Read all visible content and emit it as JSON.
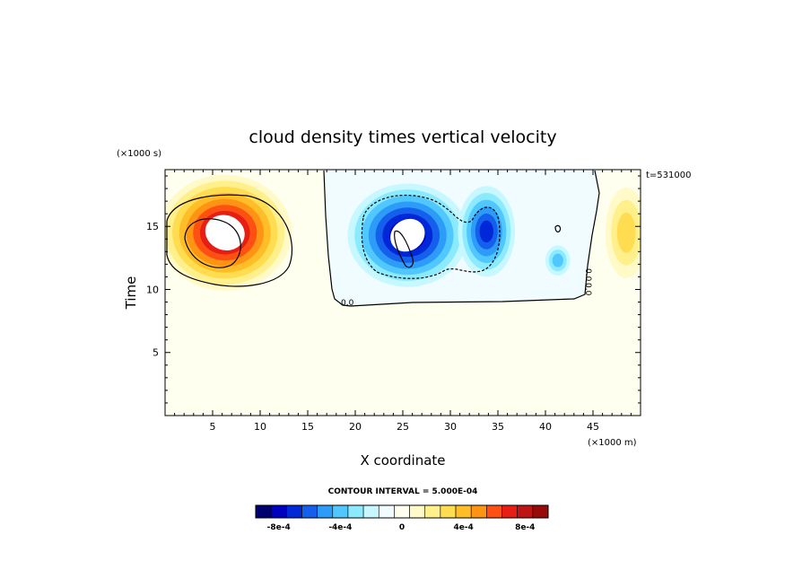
{
  "chart_data": {
    "type": "heatmap",
    "title": "cloud density times vertical velocity",
    "xlabel": "X coordinate",
    "ylabel": "Time",
    "x_unit_note": "(×1000 m)",
    "y_unit_note": "(×1000 s)",
    "time_stamp": "t=531000",
    "xlim": [
      0,
      50
    ],
    "ylim": [
      0,
      19.5
    ],
    "x_ticks": [
      5,
      10,
      15,
      20,
      25,
      30,
      35,
      40,
      45
    ],
    "y_ticks": [
      5,
      10,
      15
    ],
    "contour_interval_text": "CONTOUR INTERVAL = 5.000E-04",
    "contour_labels": [
      "0.0",
      "0.0",
      "0.0"
    ],
    "colorbar": {
      "colors": [
        "#000070",
        "#0000c0",
        "#0028d8",
        "#1460ec",
        "#2c9cf8",
        "#50c8ff",
        "#8ceaff",
        "#c8f8ff",
        "#f0fcff",
        "#fffff0",
        "#fffac8",
        "#fff08c",
        "#ffdc50",
        "#ffbe28",
        "#ff9414",
        "#ff5014",
        "#e61e14",
        "#be1414",
        "#960a0a"
      ],
      "tick_labels": [
        "-8e-4",
        "-4e-4",
        "0",
        "4e-4",
        "8e-4"
      ],
      "tick_values": [
        -0.0008,
        -0.0004,
        0,
        0.0004,
        0.0008
      ],
      "range": [
        -0.00095,
        0.00095
      ]
    },
    "features": [
      {
        "kind": "positive_max",
        "x": 6.3,
        "y": 14.5,
        "rx": 7.0,
        "ry": 4.6,
        "peak": 0.00095
      },
      {
        "kind": "negative_min",
        "x": 25.5,
        "y": 14.3,
        "rx": 6.3,
        "ry": 4.1,
        "peak": -0.0009
      },
      {
        "kind": "negative_min",
        "x": 33.8,
        "y": 14.6,
        "rx": 3.0,
        "ry": 3.6,
        "peak": -0.0007
      },
      {
        "kind": "negative_weak",
        "x": 41.3,
        "y": 12.3,
        "rx": 1.3,
        "ry": 1.2,
        "peak": -0.0004
      },
      {
        "kind": "positive_weak",
        "x": 48.5,
        "y": 14.5,
        "rx": 2.2,
        "ry": 3.6,
        "peak": 0.0003
      }
    ]
  }
}
